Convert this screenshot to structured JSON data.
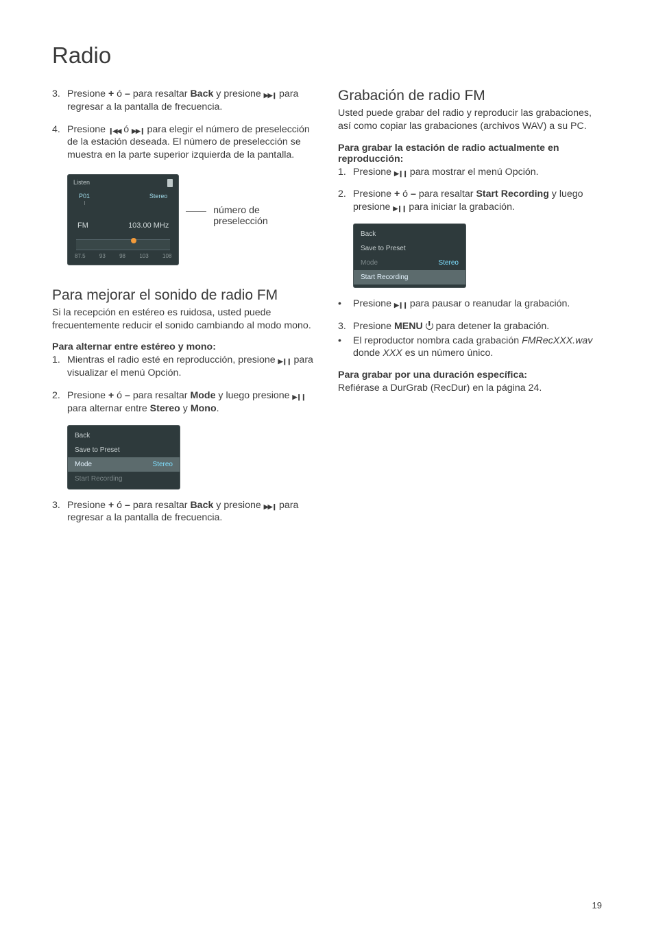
{
  "pageTitle": "Radio",
  "pageNumber": "19",
  "left": {
    "step3": {
      "num": "3.",
      "pre": "Presione ",
      "bold1": "+",
      "mid1": " ó ",
      "bold2": "–",
      "mid2": " para resaltar ",
      "bold3": "Back",
      "mid3": " y presione ",
      "after": " para regresar a la pantalla de frecuencia."
    },
    "step4": {
      "num": "4.",
      "pre": "Presione ",
      "mid": " ó ",
      "post": " para elegir el número de preselección de la estación deseada. El número de preselección se muestra en la parte superior izquierda de la pantalla."
    },
    "radioScreen": {
      "header": "Listen",
      "preset": "P01",
      "stereo": "Stereo",
      "band": "FM",
      "frequency": "103.00 MHz",
      "scale": [
        "87.5",
        "93",
        "98",
        "103",
        "108"
      ]
    },
    "callout": "número de preselección",
    "section2": {
      "title": "Para mejorar el sonido de radio FM",
      "body": "Si la recepción en estéreo es ruidosa, usted puede frecuentemente reducir el sonido cambiando al modo mono."
    },
    "subhead": "Para alternar entre estéreo y mono:",
    "s2step1": {
      "num": "1.",
      "pre": "Mientras el radio esté en reproducción, presione ",
      "post": " para visualizar el menú Opción."
    },
    "s2step2": {
      "num": "2.",
      "pre": "Presione ",
      "bold1": "+",
      "mid1": " ó ",
      "bold2": "–",
      "mid2": " para resaltar ",
      "bold3": "Mode",
      "mid3": " y luego presione ",
      "mid4": " para alternar entre ",
      "bold4": "Stereo",
      "mid5": " y ",
      "bold5": "Mono",
      "end": "."
    },
    "menuScreen1": {
      "rows": [
        {
          "label": "Back",
          "sel": false,
          "val": ""
        },
        {
          "label": "Save to Preset",
          "sel": false,
          "val": ""
        },
        {
          "label": "Mode",
          "sel": true,
          "val": "Stereo"
        },
        {
          "label": "Start Recording",
          "sel": false,
          "dim": true,
          "val": ""
        }
      ]
    },
    "s2step3": {
      "num": "3.",
      "pre": "Presione ",
      "bold1": "+",
      "mid1": " ó ",
      "bold2": "–",
      "mid2": " para resaltar ",
      "bold3": "Back",
      "mid3": " y presione ",
      "after": " para regresar a la pantalla de frecuencia."
    }
  },
  "right": {
    "section": {
      "title": "Grabación de radio FM",
      "body": "Usted puede grabar del radio y reproducir las grabaciones, así como copiar las grabaciones (archivos WAV) a su PC."
    },
    "subhead1": "Para grabar la estación de radio actualmente en reproducción:",
    "rstep1": {
      "num": "1.",
      "pre": "Presione ",
      "post": " para mostrar el menú Opción."
    },
    "rstep2": {
      "num": "2.",
      "pre": "Presione ",
      "bold1": "+",
      "mid1": " ó ",
      "bold2": "–",
      "mid2": " para resaltar ",
      "bold3": "Start Recording",
      "mid3": " y luego presione ",
      "post": " para iniciar la grabación."
    },
    "menuScreen2": {
      "rows": [
        {
          "label": "Back",
          "sel": false,
          "val": ""
        },
        {
          "label": "Save to Preset",
          "sel": false,
          "val": ""
        },
        {
          "label": "Mode",
          "sel": false,
          "dim": true,
          "val": "Stereo"
        },
        {
          "label": "Start Recording",
          "sel": true,
          "val": ""
        }
      ]
    },
    "bullet1": {
      "pre": "Presione ",
      "post": " para pausar o reanudar la grabación."
    },
    "rstep3": {
      "num": "3.",
      "pre": "Presione ",
      "bold1": "MENU",
      "post": " para detener la grabación."
    },
    "bullet2": {
      "pre": "El reproductor nombra cada grabación ",
      "it1": "FMRecXXX.wav",
      "mid": " donde ",
      "it2": "XXX",
      "post": " es un número único."
    },
    "subhead2": "Para grabar por una duración específica:",
    "lastline": "Refiérase a DurGrab (RecDur) en la página 24."
  }
}
